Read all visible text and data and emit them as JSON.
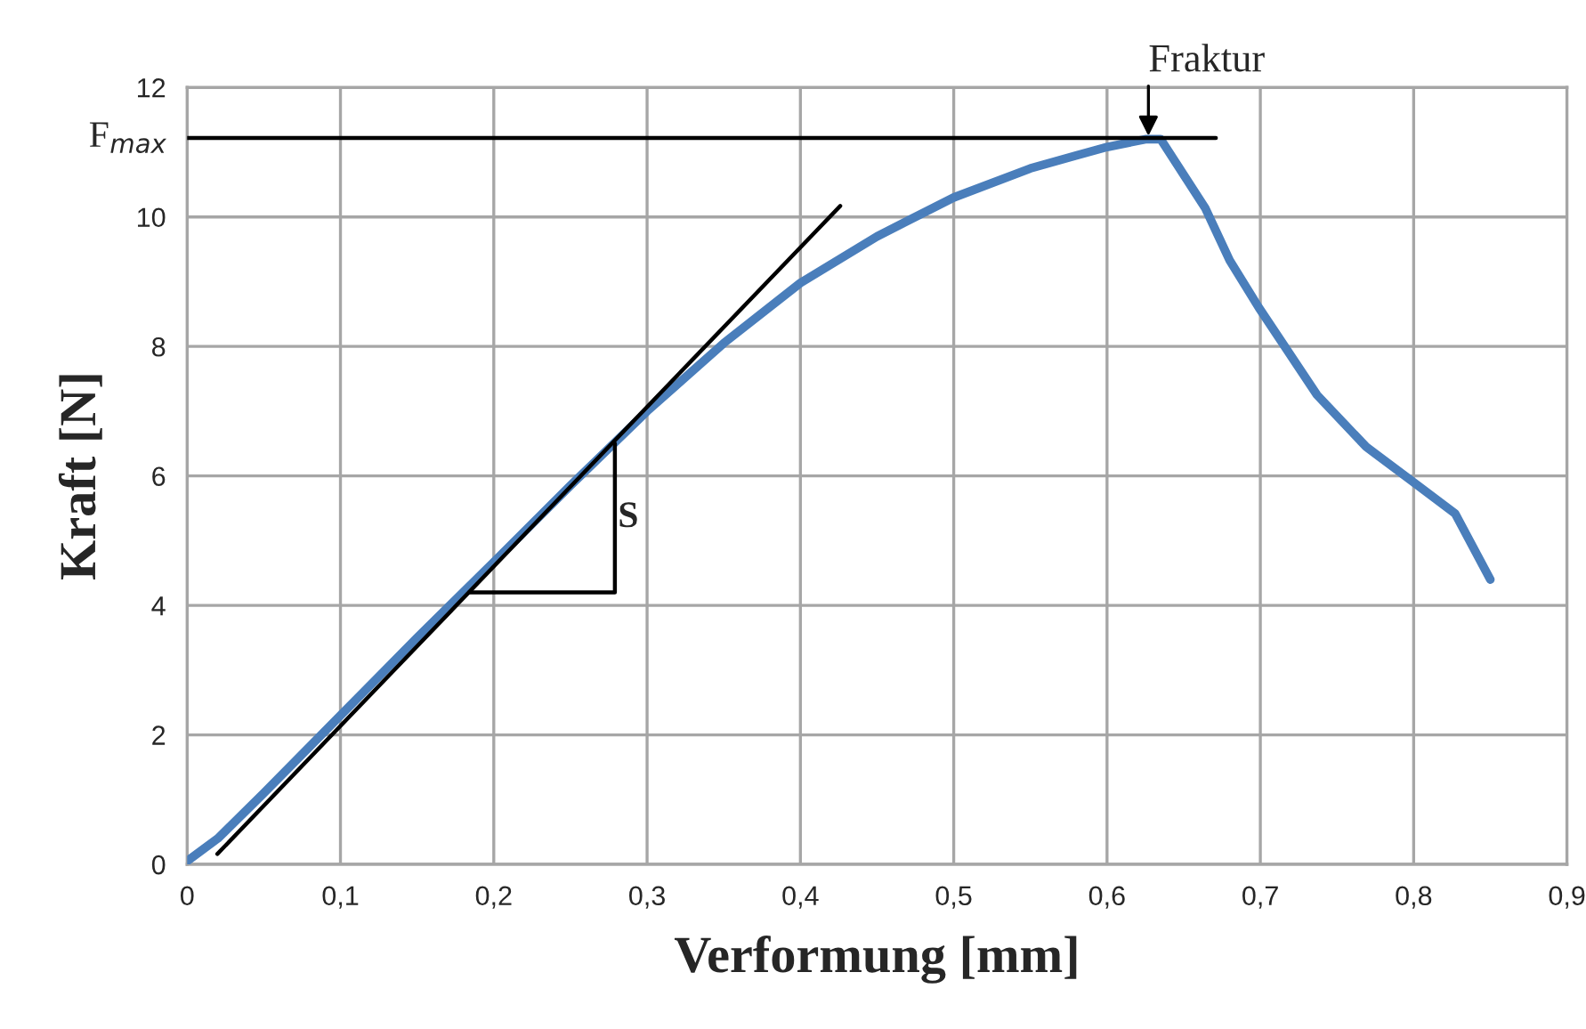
{
  "chart_data": {
    "type": "line",
    "xlabel": "Verformung [mm]",
    "ylabel": "Kraft [N]",
    "xlim": [
      0,
      0.9
    ],
    "xticks": [
      0,
      {
        "value": 0.1,
        "label": "0,1"
      },
      {
        "value": 0.2,
        "label": "0,2"
      },
      {
        "value": 0.3,
        "label": "0,3"
      },
      {
        "value": 0.4,
        "label": "0,4"
      },
      {
        "value": 0.5,
        "label": "0,5"
      },
      {
        "value": 0.6,
        "label": "0,6"
      },
      {
        "value": 0.7,
        "label": "0,7"
      },
      {
        "value": 0.8,
        "label": "0,8"
      },
      {
        "value": 0.9,
        "label": "0,9"
      }
    ],
    "ylim": [
      0,
      12
    ],
    "yticks": [
      0,
      2,
      4,
      6,
      8,
      10,
      12
    ],
    "grid": true,
    "legend": false,
    "line_style": "solid",
    "marker": "none",
    "series": [
      {
        "color": "#4a7ebb",
        "x": [
          0,
          0.02,
          0.05,
          0.1,
          0.15,
          0.2,
          0.25,
          0.3,
          0.35,
          0.4,
          0.45,
          0.5,
          0.55,
          0.58,
          0.6,
          0.625,
          0.635,
          0.664,
          0.68,
          0.699,
          0.737,
          0.769,
          0.8,
          0.827,
          0.85
        ],
        "values": [
          0.05,
          0.4,
          1.1,
          2.3,
          3.5,
          4.67,
          5.85,
          7.0,
          8.05,
          8.98,
          9.7,
          10.3,
          10.75,
          10.95,
          11.08,
          11.2,
          11.2,
          10.14,
          9.33,
          8.6,
          7.25,
          6.45,
          5.9,
          5.42,
          4.4
        ]
      },
      {
        "color": "#000000",
        "x": [
          0.0197,
          0.426
        ],
        "values": [
          0.16,
          10.17
        ]
      },
      {
        "color": "#000000",
        "x": [
          0.184,
          0.279,
          0.279
        ],
        "values": [
          4.2,
          4.2,
          6.5
        ]
      },
      {
        "name": "F$_{max}$",
        "color": "#000000",
        "x": [
          0,
          0.671
        ],
        "values": [
          11.22,
          11.22
        ]
      }
    ],
    "annotations": [
      {
        "text": "S",
        "x": 0.281,
        "y": 5.35
      },
      {
        "text": "Fraktur",
        "x": 0.627,
        "y": 11.25
      }
    ]
  }
}
